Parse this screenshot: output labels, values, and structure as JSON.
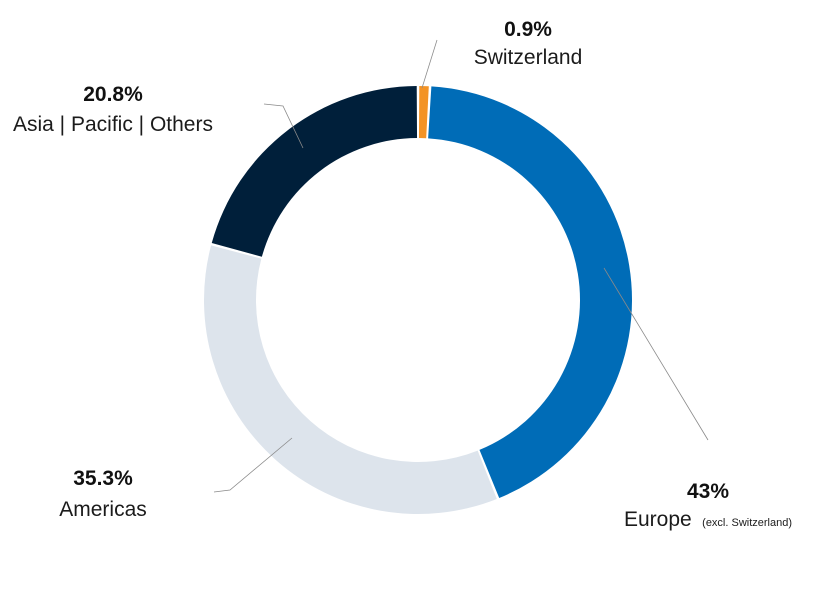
{
  "chart_data": {
    "type": "pie",
    "donut": true,
    "categories": [
      "Switzerland",
      "Europe",
      "Americas",
      "Asia | Pacific | Others"
    ],
    "values": [
      0.9,
      43,
      35.3,
      20.8
    ],
    "value_labels": [
      "0.9%",
      "43%",
      "35.3%",
      "20.8%"
    ],
    "category_notes": [
      "",
      "(excl. Switzerland)",
      "",
      ""
    ],
    "colors": [
      "#f39325",
      "#006cb7",
      "#dde4ec",
      "#001f3a"
    ],
    "title": "",
    "legend": "none"
  }
}
